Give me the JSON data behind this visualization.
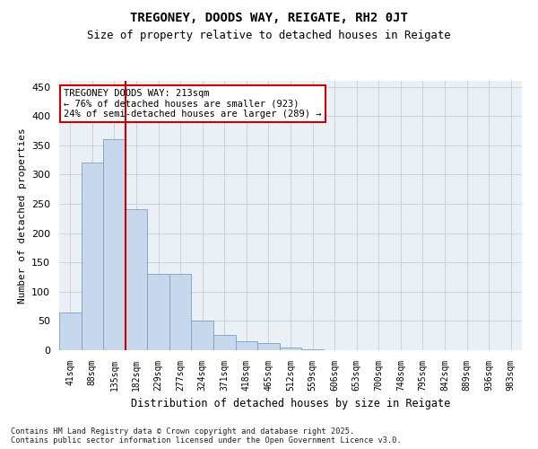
{
  "title": "TREGONEY, DOODS WAY, REIGATE, RH2 0JT",
  "subtitle": "Size of property relative to detached houses in Reigate",
  "xlabel": "Distribution of detached houses by size in Reigate",
  "ylabel": "Number of detached properties",
  "categories": [
    "41sqm",
    "88sqm",
    "135sqm",
    "182sqm",
    "229sqm",
    "277sqm",
    "324sqm",
    "371sqm",
    "418sqm",
    "465sqm",
    "512sqm",
    "559sqm",
    "606sqm",
    "653sqm",
    "700sqm",
    "748sqm",
    "795sqm",
    "842sqm",
    "889sqm",
    "936sqm",
    "983sqm"
  ],
  "bar_heights": [
    65,
    320,
    360,
    240,
    130,
    130,
    50,
    26,
    15,
    12,
    5,
    2,
    0,
    0,
    0,
    0,
    0,
    0,
    0,
    0,
    0
  ],
  "bar_color": "#c8d8ec",
  "bar_edge_color": "#7aa0c0",
  "grid_color": "#c8d4dc",
  "plot_bg_color": "#eaf0f6",
  "vline_x_index": 3,
  "vline_color": "#cc0000",
  "annotation_text": "TREGONEY DOODS WAY: 213sqm\n← 76% of detached houses are smaller (923)\n24% of semi-detached houses are larger (289) →",
  "annotation_box_facecolor": "#ffffff",
  "annotation_box_edgecolor": "#cc0000",
  "ylim": [
    0,
    460
  ],
  "yticks": [
    0,
    50,
    100,
    150,
    200,
    250,
    300,
    350,
    400,
    450
  ],
  "footer": "Contains HM Land Registry data © Crown copyright and database right 2025.\nContains public sector information licensed under the Open Government Licence v3.0."
}
